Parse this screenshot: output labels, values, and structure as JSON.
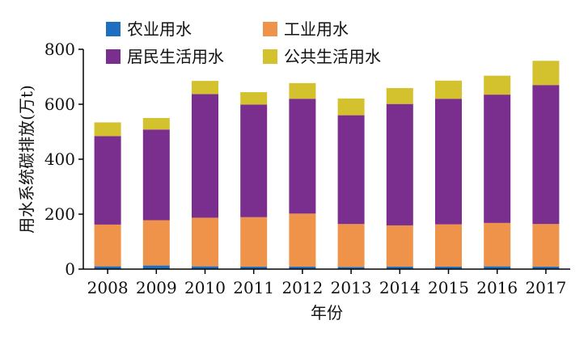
{
  "chart_data": {
    "type": "bar",
    "stacked": true,
    "categories": [
      "2008",
      "2009",
      "2010",
      "2011",
      "2012",
      "2013",
      "2014",
      "2015",
      "2016",
      "2017"
    ],
    "series": [
      {
        "name": "农业用水",
        "color": "#1f6fc0",
        "values": [
          10,
          13,
          10,
          9,
          9,
          8,
          9,
          9,
          10,
          9
        ]
      },
      {
        "name": "工业用水",
        "color": "#f0934a",
        "values": [
          152,
          165,
          177,
          180,
          193,
          156,
          150,
          154,
          158,
          155
        ]
      },
      {
        "name": "居民生活用水",
        "color": "#7a2e8e",
        "values": [
          322,
          330,
          450,
          410,
          418,
          396,
          442,
          457,
          467,
          506
        ]
      },
      {
        "name": "公共生活用水",
        "color": "#d4c12e",
        "values": [
          50,
          42,
          48,
          45,
          57,
          61,
          58,
          66,
          69,
          88
        ]
      }
    ],
    "xlabel": "年份",
    "ylabel": "用水系统碳排放(万t)",
    "ylim": [
      0,
      800
    ],
    "yticks": [
      0,
      200,
      400,
      600,
      800
    ],
    "grid": false,
    "legend_position": "top"
  }
}
